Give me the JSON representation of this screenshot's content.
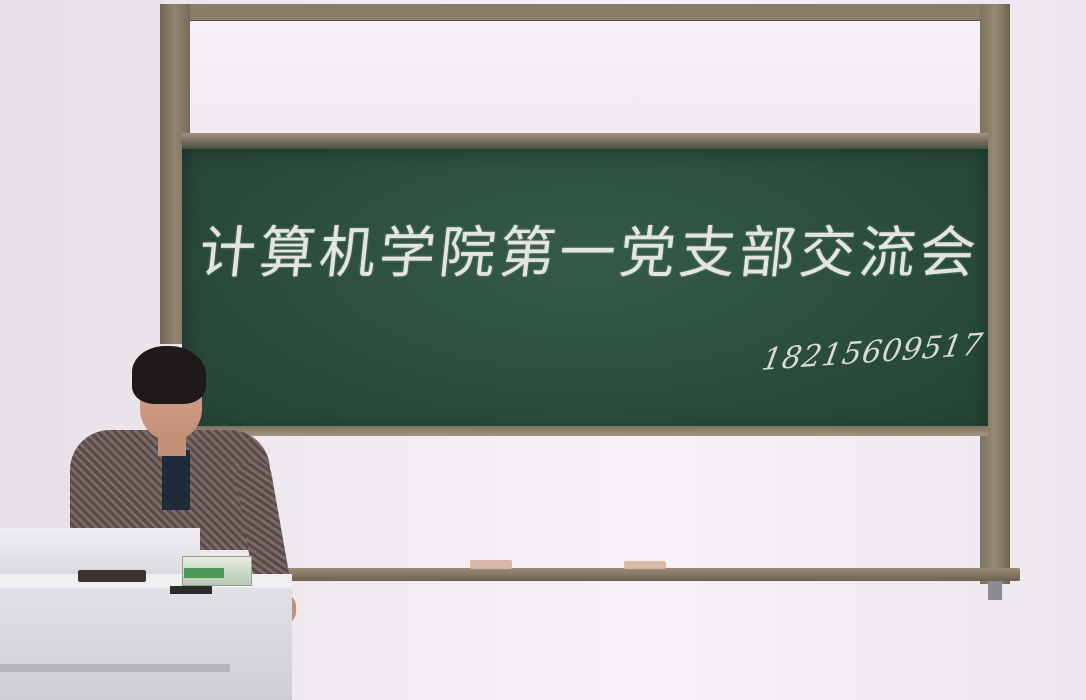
{
  "chalkboard": {
    "title": "计算机学院第一党支部交流会",
    "phone": "18215609517"
  },
  "colors": {
    "board": "#2b4d3d",
    "frame": "#8a7d68",
    "wall": "#f1ecf2",
    "chalk": "#f2f2ee"
  }
}
